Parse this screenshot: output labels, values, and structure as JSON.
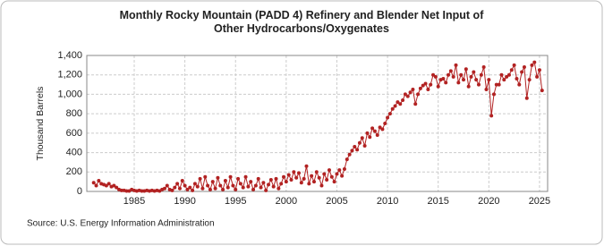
{
  "chart_data": {
    "type": "line",
    "title": "Monthly Rocky Mountain (PADD 4) Refinery and Blender Net Input of Other Hydrocarbons/Oxygenates",
    "y_label": "Thousand Barrels",
    "source": "Source: U.S. Energy Information Administration",
    "x": [
      1981,
      1981.25,
      1981.5,
      1981.75,
      1982,
      1982.25,
      1982.5,
      1982.75,
      1983,
      1983.25,
      1983.5,
      1983.75,
      1984,
      1984.25,
      1984.5,
      1984.75,
      1985,
      1985.25,
      1985.5,
      1985.75,
      1986,
      1986.25,
      1986.5,
      1986.75,
      1987,
      1987.25,
      1987.5,
      1987.75,
      1988,
      1988.25,
      1988.5,
      1988.75,
      1989,
      1989.25,
      1989.5,
      1989.75,
      1990,
      1990.25,
      1990.5,
      1990.75,
      1991,
      1991.25,
      1991.5,
      1991.75,
      1992,
      1992.25,
      1992.5,
      1992.75,
      1993,
      1993.25,
      1993.5,
      1993.75,
      1994,
      1994.25,
      1994.5,
      1994.75,
      1995,
      1995.25,
      1995.5,
      1995.75,
      1996,
      1996.25,
      1996.5,
      1996.75,
      1997,
      1997.25,
      1997.5,
      1997.75,
      1998,
      1998.25,
      1998.5,
      1998.75,
      1999,
      1999.25,
      1999.5,
      1999.75,
      2000,
      2000.25,
      2000.5,
      2000.75,
      2001,
      2001.25,
      2001.5,
      2001.75,
      2002,
      2002.25,
      2002.5,
      2002.75,
      2003,
      2003.25,
      2003.5,
      2003.75,
      2004,
      2004.25,
      2004.5,
      2004.75,
      2005,
      2005.25,
      2005.5,
      2005.75,
      2006,
      2006.25,
      2006.5,
      2006.75,
      2007,
      2007.25,
      2007.5,
      2007.75,
      2008,
      2008.25,
      2008.5,
      2008.75,
      2009,
      2009.25,
      2009.5,
      2009.75,
      2010,
      2010.25,
      2010.5,
      2010.75,
      2011,
      2011.25,
      2011.5,
      2011.75,
      2012,
      2012.25,
      2012.5,
      2012.75,
      2013,
      2013.25,
      2013.5,
      2013.75,
      2014,
      2014.25,
      2014.5,
      2014.75,
      2015,
      2015.25,
      2015.5,
      2015.75,
      2016,
      2016.25,
      2016.5,
      2016.75,
      2017,
      2017.25,
      2017.5,
      2017.75,
      2018,
      2018.25,
      2018.5,
      2018.75,
      2019,
      2019.25,
      2019.5,
      2019.75,
      2020,
      2020.25,
      2020.5,
      2020.75,
      2021,
      2021.25,
      2021.5,
      2021.75,
      2022,
      2022.25,
      2022.5,
      2022.75,
      2023,
      2023.25,
      2023.5,
      2023.75,
      2024,
      2024.25,
      2024.5,
      2024.75,
      2025,
      2025.25
    ],
    "series": [
      {
        "color": "#b22222",
        "values": [
          90,
          60,
          110,
          80,
          70,
          60,
          80,
          50,
          60,
          40,
          20,
          10,
          10,
          5,
          5,
          20,
          10,
          5,
          10,
          5,
          5,
          10,
          5,
          10,
          5,
          10,
          5,
          20,
          30,
          60,
          20,
          10,
          40,
          80,
          30,
          110,
          60,
          20,
          40,
          10,
          80,
          50,
          130,
          30,
          150,
          60,
          20,
          100,
          30,
          140,
          60,
          20,
          110,
          40,
          150,
          60,
          20,
          130,
          80,
          40,
          150,
          50,
          100,
          20,
          60,
          130,
          40,
          90,
          10,
          70,
          120,
          50,
          130,
          30,
          80,
          150,
          100,
          170,
          120,
          200,
          140,
          190,
          90,
          130,
          260,
          80,
          160,
          100,
          200,
          140,
          60,
          180,
          120,
          220,
          150,
          100,
          180,
          220,
          160,
          230,
          330,
          380,
          420,
          460,
          430,
          500,
          550,
          470,
          600,
          560,
          650,
          620,
          580,
          660,
          640,
          700,
          760,
          800,
          850,
          880,
          920,
          900,
          940,
          1000,
          980,
          1020,
          1050,
          900,
          1000,
          1060,
          1090,
          1110,
          1050,
          1100,
          1200,
          1180,
          1080,
          1150,
          1160,
          1120,
          1200,
          1240,
          1180,
          1300,
          1120,
          1200,
          1150,
          1260,
          1080,
          1180,
          1230,
          1150,
          1100,
          1200,
          1280,
          1050,
          1150,
          780,
          1000,
          1100,
          1100,
          1200,
          1150,
          1180,
          1200,
          1250,
          1300,
          1160,
          1100,
          1230,
          1280,
          960,
          1150,
          1300,
          1330,
          1180,
          1250,
          1040
        ]
      }
    ],
    "xlim": [
      1980.32,
      2025.8
    ],
    "xticks": [
      1985,
      1990,
      1995,
      2000,
      2005,
      2010,
      2015,
      2020,
      2025
    ],
    "ylim": [
      0,
      1400
    ],
    "yticks": [
      0,
      200,
      400,
      600,
      800,
      {
        "value": 1000,
        "label": "1,000"
      },
      {
        "value": 1200,
        "label": "1,200"
      },
      {
        "value": 1400,
        "label": "1,400"
      }
    ],
    "grid": true
  }
}
